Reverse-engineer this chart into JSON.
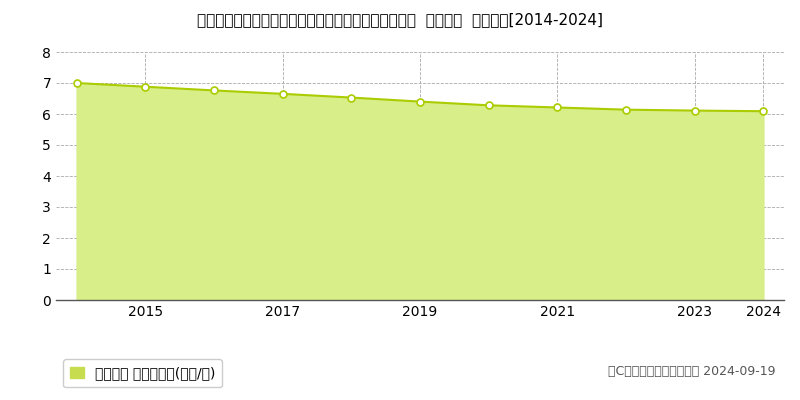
{
  "title": "和歌山県日高郡日高町大字荊木字萩之前６３５番２外  基準地価  地価推移[2014-2024]",
  "years": [
    2014,
    2015,
    2016,
    2017,
    2018,
    2019,
    2020,
    2021,
    2022,
    2023,
    2024
  ],
  "values": [
    7.0,
    6.88,
    6.76,
    6.65,
    6.53,
    6.4,
    6.28,
    6.21,
    6.14,
    6.11,
    6.09
  ],
  "ylim": [
    0,
    8
  ],
  "yticks": [
    0,
    1,
    2,
    3,
    4,
    5,
    6,
    7,
    8
  ],
  "xticks": [
    2015,
    2017,
    2019,
    2021,
    2023,
    2024
  ],
  "line_color": "#aacc00",
  "fill_color": "#d8ee88",
  "marker_color": "#ffffff",
  "marker_edge_color": "#aacc00",
  "grid_color": "#aaaaaa",
  "bg_color": "#ffffff",
  "legend_label": "基準地価 平均坪単価(万円/坪)",
  "legend_color": "#c8dc50",
  "copyright_text": "（C）土地価格ドットコム 2024-09-19",
  "title_fontsize": 11,
  "tick_fontsize": 10,
  "legend_fontsize": 10,
  "copyright_fontsize": 9
}
